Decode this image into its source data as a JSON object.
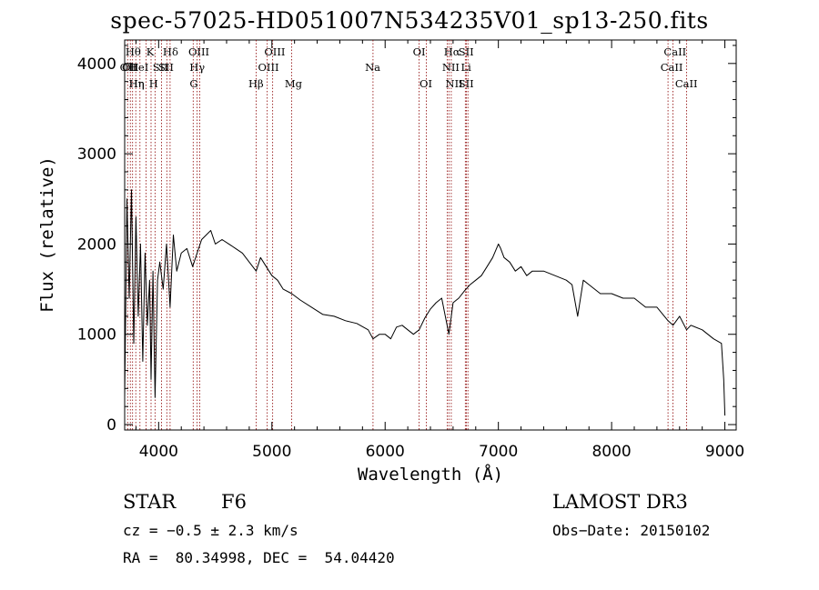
{
  "chart_data": {
    "type": "line",
    "title": "spec-57025-HD051007N534235V01_sp13-250.fits",
    "xlabel": "Wavelength (Å)",
    "ylabel": "Flux (relative)",
    "xlim": [
      3700,
      9100
    ],
    "ylim": [
      -60,
      4260
    ],
    "xticks": [
      4000,
      5000,
      6000,
      7000,
      8000,
      9000
    ],
    "yticks": [
      0,
      1000,
      2000,
      3000,
      4000
    ],
    "xtick_labels": [
      "4000",
      "5000",
      "6000",
      "7000",
      "8000",
      "9000"
    ],
    "ytick_labels": [
      "0",
      "1000",
      "2000",
      "3000",
      "4000"
    ],
    "grid": false,
    "series": [
      {
        "x": [
          3700,
          3720,
          3740,
          3760,
          3780,
          3800,
          3820,
          3840,
          3860,
          3880,
          3900,
          3920,
          3933,
          3950,
          3968,
          3990,
          4010,
          4040,
          4070,
          4101,
          4130,
          4160,
          4200,
          4250,
          4300,
          4340,
          4380,
          4420,
          4460,
          4500,
          4560,
          4620,
          4680,
          4740,
          4800,
          4861,
          4900,
          4950,
          5000,
          5050,
          5100,
          5175,
          5250,
          5350,
          5450,
          5550,
          5650,
          5750,
          5850,
          5893,
          5950,
          6000,
          6050,
          6100,
          6150,
          6200,
          6250,
          6300,
          6350,
          6400,
          6450,
          6500,
          6563,
          6600,
          6650,
          6700,
          6750,
          6800,
          6850,
          6900,
          6950,
          7000,
          7020,
          7050,
          7100,
          7150,
          7200,
          7250,
          7300,
          7400,
          7500,
          7600,
          7650,
          7700,
          7750,
          7800,
          7900,
          8000,
          8100,
          8200,
          8300,
          8400,
          8498,
          8542,
          8600,
          8662,
          8700,
          8800,
          8900,
          8970,
          8990,
          9000
        ],
        "y": [
          300,
          2500,
          1400,
          2600,
          900,
          2300,
          1200,
          2000,
          700,
          1900,
          1100,
          1600,
          500,
          1700,
          300,
          1600,
          1800,
          1500,
          2000,
          1300,
          2100,
          1700,
          1900,
          1950,
          1750,
          1900,
          2050,
          2100,
          2150,
          2000,
          2050,
          2000,
          1950,
          1900,
          1800,
          1700,
          1850,
          1750,
          1650,
          1600,
          1500,
          1450,
          1380,
          1300,
          1220,
          1200,
          1150,
          1120,
          1050,
          950,
          1000,
          1000,
          950,
          1080,
          1100,
          1050,
          1000,
          1050,
          1180,
          1280,
          1350,
          1400,
          1000,
          1350,
          1400,
          1480,
          1550,
          1600,
          1650,
          1750,
          1850,
          2000,
          1950,
          1850,
          1800,
          1700,
          1750,
          1650,
          1700,
          1700,
          1650,
          1600,
          1550,
          1200,
          1600,
          1550,
          1450,
          1450,
          1400,
          1400,
          1300,
          1300,
          1150,
          1100,
          1200,
          1050,
          1100,
          1050,
          950,
          900,
          500,
          100
        ]
      }
    ],
    "lines": [
      {
        "x": 3726,
        "label": "OII",
        "row": 2,
        "label_x": 3731
      },
      {
        "x": 3750,
        "label": "Hθ",
        "row": 1,
        "label_x": 3775
      },
      {
        "x": 3770,
        "label": "Hη",
        "row": 3,
        "label_x": 3805
      },
      {
        "x": 3798,
        "label": "OII",
        "row": 2,
        "label_x": 3750
      },
      {
        "x": 3835,
        "label": "HeI",
        "row": 2,
        "label_x": 3825
      },
      {
        "x": 3889,
        "label": "Hη",
        "row": 3,
        "label_x": 3806
      },
      {
        "x": 3933,
        "label": "K",
        "row": 1,
        "label_x": 3925
      },
      {
        "x": 3968,
        "label": "H",
        "row": 3,
        "label_x": 3955
      },
      {
        "x": 4026,
        "label": "SII",
        "row": 2,
        "label_x": 4015
      },
      {
        "x": 4072,
        "label": "SII",
        "row": 2,
        "label_x": 4065
      },
      {
        "x": 4101,
        "label": "Hδ",
        "row": 1,
        "label_x": 4105
      },
      {
        "x": 4305,
        "label": "G",
        "row": 3,
        "label_x": 4310
      },
      {
        "x": 4340,
        "label": "Hγ",
        "row": 2,
        "label_x": 4340
      },
      {
        "x": 4363,
        "label": "OIII",
        "row": 1,
        "label_x": 4355
      },
      {
        "x": 4861,
        "label": "Hβ",
        "row": 3,
        "label_x": 4860
      },
      {
        "x": 4959,
        "label": "OIII",
        "row": 2,
        "label_x": 4970
      },
      {
        "x": 5007,
        "label": "OIII",
        "row": 1,
        "label_x": 5025
      },
      {
        "x": 5175,
        "label": "Mg",
        "row": 3,
        "label_x": 5190
      },
      {
        "x": 5893,
        "label": "Na",
        "row": 2,
        "label_x": 5890
      },
      {
        "x": 6300,
        "label": "OI",
        "row": 1,
        "label_x": 6300
      },
      {
        "x": 6364,
        "label": "OI",
        "row": 3,
        "label_x": 6360
      },
      {
        "x": 6548,
        "label": "NII",
        "row": 2,
        "label_x": 6580
      },
      {
        "x": 6563,
        "label": "Hα",
        "row": 1,
        "label_x": 6590
      },
      {
        "x": 6584,
        "label": "NII",
        "row": 3,
        "label_x": 6610
      },
      {
        "x": 6708,
        "label": "Li",
        "row": 2,
        "label_x": 6715
      },
      {
        "x": 6717,
        "label": "SII",
        "row": 1,
        "label_x": 6715
      },
      {
        "x": 6731,
        "label": "SII",
        "row": 3,
        "label_x": 6715
      },
      {
        "x": 8498,
        "label": "CaII",
        "row": 2,
        "label_x": 8530
      },
      {
        "x": 8542,
        "label": "CaII",
        "row": 1,
        "label_x": 8560
      },
      {
        "x": 8662,
        "label": "CaII",
        "row": 3,
        "label_x": 8660
      }
    ]
  },
  "footer": {
    "class": "STAR",
    "subclass": "F6",
    "survey": "LAMOST DR3",
    "cz": "cz = −0.5 ± 2.3 km/s",
    "obs_date": "Obs−Date: 20150102",
    "coords": "RA =  80.34998, DEC =  54.04420"
  },
  "colors": {
    "spectrum": "#000000",
    "line_markers": "#8b0000"
  }
}
